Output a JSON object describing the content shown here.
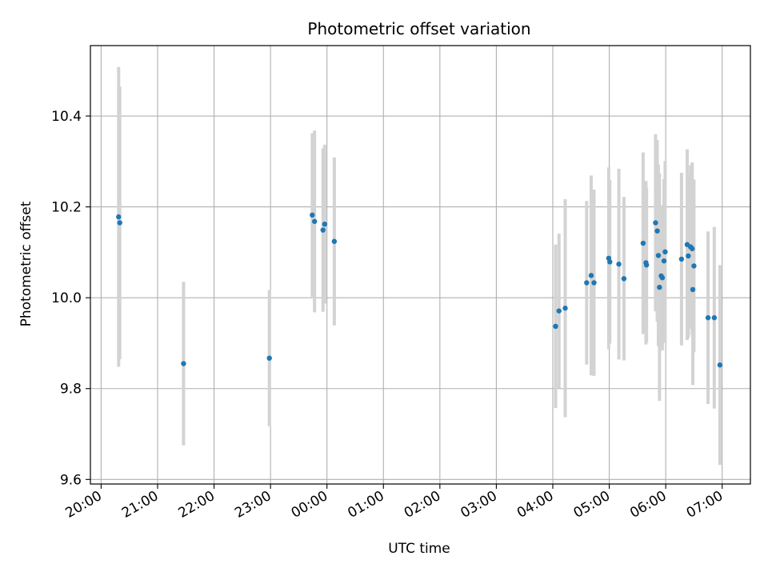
{
  "chart_data": {
    "type": "scatter",
    "title": "Photometric offset variation",
    "xlabel": "UTC time",
    "ylabel": "Photometric offset",
    "x_unit": "hours since 20:00 UTC",
    "xlim": [
      -0.19,
      11.5
    ],
    "ylim": [
      9.59,
      10.555
    ],
    "x_ticks": [
      {
        "label": "20:00",
        "value": 0
      },
      {
        "label": "21:00",
        "value": 1
      },
      {
        "label": "22:00",
        "value": 2
      },
      {
        "label": "23:00",
        "value": 3
      },
      {
        "label": "00:00",
        "value": 4
      },
      {
        "label": "01:00",
        "value": 5
      },
      {
        "label": "02:00",
        "value": 6
      },
      {
        "label": "03:00",
        "value": 7
      },
      {
        "label": "04:00",
        "value": 8
      },
      {
        "label": "05:00",
        "value": 9
      },
      {
        "label": "06:00",
        "value": 10
      },
      {
        "label": "07:00",
        "value": 11
      }
    ],
    "y_ticks": [
      {
        "label": "9.6",
        "value": 9.6
      },
      {
        "label": "9.8",
        "value": 9.8
      },
      {
        "label": "10.0",
        "value": 10.0
      },
      {
        "label": "10.2",
        "value": 10.2
      },
      {
        "label": "10.4",
        "value": 10.4
      }
    ],
    "grid": true,
    "marker_color": "#1f77b4",
    "errorbar_color": "#d3d3d3",
    "points": [
      {
        "x": 0.31,
        "y": 10.178,
        "err": 0.33
      },
      {
        "x": 0.33,
        "y": 10.165,
        "err": 0.3
      },
      {
        "x": 1.46,
        "y": 9.855,
        "err": 0.18
      },
      {
        "x": 2.98,
        "y": 9.867,
        "err": 0.15
      },
      {
        "x": 3.74,
        "y": 10.182,
        "err": 0.18
      },
      {
        "x": 3.78,
        "y": 10.168,
        "err": 0.2
      },
      {
        "x": 3.93,
        "y": 10.149,
        "err": 0.18
      },
      {
        "x": 3.96,
        "y": 10.162,
        "err": 0.175
      },
      {
        "x": 4.13,
        "y": 10.124,
        "err": 0.185
      },
      {
        "x": 8.05,
        "y": 9.937,
        "err": 0.18
      },
      {
        "x": 8.11,
        "y": 9.971,
        "err": 0.17
      },
      {
        "x": 8.22,
        "y": 9.977,
        "err": 0.24
      },
      {
        "x": 8.6,
        "y": 10.033,
        "err": 0.18
      },
      {
        "x": 8.68,
        "y": 10.049,
        "err": 0.22
      },
      {
        "x": 8.73,
        "y": 10.033,
        "err": 0.205
      },
      {
        "x": 8.99,
        "y": 10.087,
        "err": 0.2
      },
      {
        "x": 9.01,
        "y": 10.079,
        "err": 0.18
      },
      {
        "x": 9.17,
        "y": 10.074,
        "err": 0.21
      },
      {
        "x": 9.26,
        "y": 10.042,
        "err": 0.18
      },
      {
        "x": 9.6,
        "y": 10.12,
        "err": 0.2
      },
      {
        "x": 9.65,
        "y": 10.077,
        "err": 0.18
      },
      {
        "x": 9.66,
        "y": 10.072,
        "err": 0.17
      },
      {
        "x": 9.82,
        "y": 10.165,
        "err": 0.195
      },
      {
        "x": 9.85,
        "y": 10.147,
        "err": 0.2
      },
      {
        "x": 9.87,
        "y": 10.093,
        "err": 0.2
      },
      {
        "x": 9.89,
        "y": 10.023,
        "err": 0.25
      },
      {
        "x": 9.92,
        "y": 10.048,
        "err": 0.15
      },
      {
        "x": 9.94,
        "y": 10.044,
        "err": 0.16
      },
      {
        "x": 9.97,
        "y": 10.081,
        "err": 0.18
      },
      {
        "x": 9.99,
        "y": 10.101,
        "err": 0.2
      },
      {
        "x": 10.28,
        "y": 10.085,
        "err": 0.19
      },
      {
        "x": 10.38,
        "y": 10.117,
        "err": 0.21
      },
      {
        "x": 10.4,
        "y": 10.092,
        "err": 0.18
      },
      {
        "x": 10.44,
        "y": 10.112,
        "err": 0.18
      },
      {
        "x": 10.47,
        "y": 10.108,
        "err": 0.19
      },
      {
        "x": 10.5,
        "y": 10.07,
        "err": 0.19
      },
      {
        "x": 10.48,
        "y": 10.018,
        "err": 0.21
      },
      {
        "x": 10.75,
        "y": 9.956,
        "err": 0.19
      },
      {
        "x": 10.86,
        "y": 9.956,
        "err": 0.2
      },
      {
        "x": 10.96,
        "y": 9.852,
        "err": 0.22
      }
    ]
  }
}
